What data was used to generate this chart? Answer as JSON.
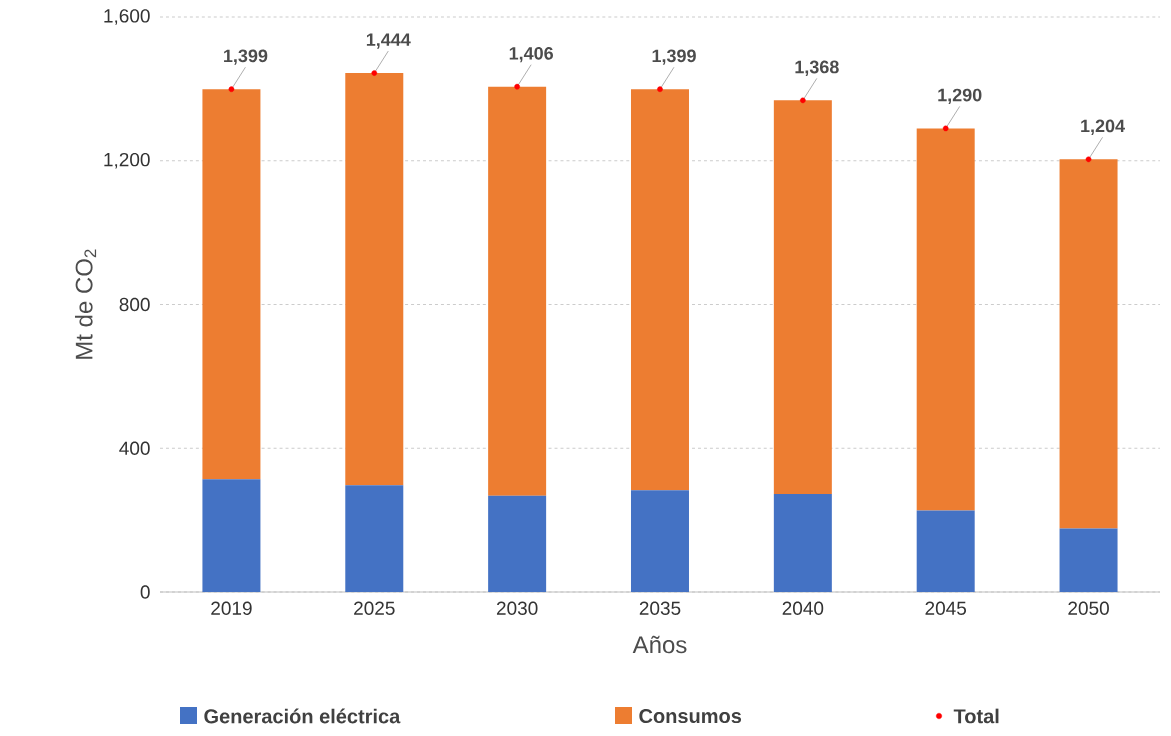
{
  "chart_data": {
    "type": "bar",
    "stacked": true,
    "xlabel": "Años",
    "ylabel": "Mt de CO$_{2}$",
    "categories": [
      "2019",
      "2025",
      "2030",
      "2035",
      "2040",
      "2045",
      "2050"
    ],
    "series": [
      {
        "name": "Generación eléctrica",
        "color": "#4472c4",
        "values": [
          314,
          297,
          268,
          283,
          273,
          227,
          177
        ]
      },
      {
        "name": "Consumos",
        "color": "#ed7d31",
        "values": [
          1085,
          1147,
          1138,
          1116,
          1095,
          1063,
          1027
        ]
      },
      {
        "name": "Total",
        "type": "scatter",
        "color": "#ff0000",
        "values": [
          1399,
          1444,
          1406,
          1399,
          1368,
          1290,
          1204
        ],
        "value_labels": [
          "1,399",
          "1,444",
          "1,406",
          "1,399",
          "1,368",
          "1,290",
          "1,204"
        ]
      }
    ],
    "ylim": [
      0,
      1600
    ],
    "yticks": [
      {
        "value": 0,
        "label": "0"
      },
      {
        "value": 400,
        "label": "400"
      },
      {
        "value": 800,
        "label": "800"
      },
      {
        "value": 1200,
        "label": "1,200"
      },
      {
        "value": 1600,
        "label": "1,600"
      }
    ],
    "grid": "y",
    "legend": "bottom",
    "marker": "circle"
  }
}
